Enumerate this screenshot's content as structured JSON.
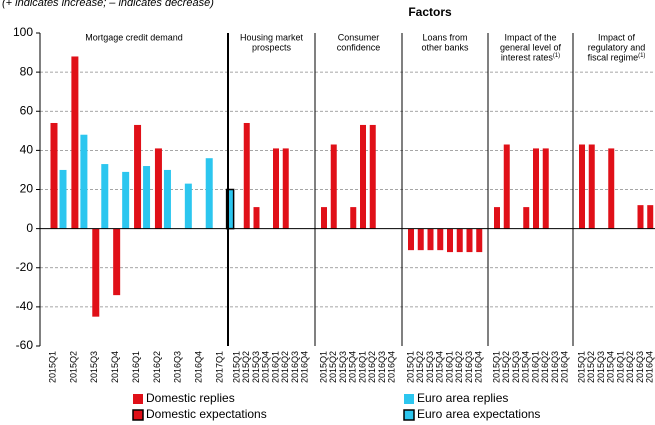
{
  "chart_data": {
    "type": "bar",
    "note": "(+ indicates increase; – indicates decrease)",
    "title": "Factors",
    "ylim": [
      -60,
      100
    ],
    "yticks": [
      -60,
      -40,
      -20,
      0,
      20,
      40,
      60,
      80,
      100
    ],
    "grid": true,
    "series": [
      {
        "name": "Domestic replies",
        "color": "#e01018",
        "border": false
      },
      {
        "name": "Euro area replies",
        "color": "#2cc6ef",
        "border": false
      },
      {
        "name": "Domestic expectations",
        "color": "#e01018",
        "border": true
      },
      {
        "name": "Euro area expectations",
        "color": "#2cc6ef",
        "border": true
      }
    ],
    "panels": [
      {
        "title": [
          "Mortgage credit demand"
        ],
        "note_ref": null,
        "categories": [
          "2015Q1",
          "2015Q2",
          "2015Q3",
          "2015Q4",
          "2016Q1",
          "2016Q2",
          "2016Q3",
          "2016Q4",
          "2017Q1"
        ],
        "series": [
          {
            "values": [
              54,
              88,
              -45,
              -34,
              53,
              41,
              0,
              0,
              null
            ]
          },
          {
            "values": [
              30,
              48,
              33,
              29,
              32,
              30,
              23,
              36,
              null
            ]
          },
          {
            "values": [
              null,
              null,
              null,
              null,
              null,
              null,
              null,
              null,
              0
            ]
          },
          {
            "values": [
              null,
              null,
              null,
              null,
              null,
              null,
              null,
              null,
              20
            ]
          }
        ]
      },
      {
        "title": [
          "Housing market",
          "prospects"
        ],
        "note_ref": null,
        "categories": [
          "2015Q1",
          "2015Q2",
          "2015Q3",
          "2015Q4",
          "2016Q1",
          "2016Q2",
          "2016Q3",
          "2016Q4"
        ],
        "series": [
          {
            "values": [
              0,
              54,
              11,
              0,
              41,
              41,
              0,
              0
            ]
          }
        ]
      },
      {
        "title": [
          "Consumer",
          "confidence"
        ],
        "note_ref": null,
        "categories": [
          "2015Q1",
          "2015Q2",
          "2015Q3",
          "2015Q4",
          "2016Q1",
          "2016Q2",
          "2016Q3",
          "2016Q4"
        ],
        "series": [
          {
            "values": [
              11,
              43,
              0,
              11,
              53,
              53,
              0,
              0
            ]
          }
        ]
      },
      {
        "title": [
          "Loans from",
          "other banks"
        ],
        "note_ref": null,
        "categories": [
          "2015Q1",
          "2015Q2",
          "2015Q3",
          "2015Q4",
          "2016Q1",
          "2016Q2",
          "2016Q3",
          "2016Q4"
        ],
        "series": [
          {
            "values": [
              -11,
              -11,
              -11,
              -11,
              -12,
              -12,
              -12,
              -12
            ]
          }
        ]
      },
      {
        "title": [
          "Impact of the",
          "general level of",
          "interest rates"
        ],
        "note_ref": "(1)",
        "categories": [
          "2015Q1",
          "2015Q2",
          "2015Q3",
          "2015Q4",
          "2016Q1",
          "2016Q2",
          "2016Q3",
          "2016Q4"
        ],
        "series": [
          {
            "values": [
              11,
              43,
              0,
              11,
              41,
              41,
              0,
              0
            ]
          }
        ]
      },
      {
        "title": [
          "Impact of",
          "regulatory and",
          "fiscal regime"
        ],
        "note_ref": "(1)",
        "categories": [
          "2015Q1",
          "2015Q2",
          "2015Q3",
          "2015Q4",
          "2016Q1",
          "2016Q2",
          "2016Q3",
          "2016Q4"
        ],
        "series": [
          {
            "values": [
              43,
              43,
              0,
              41,
              0,
              0,
              12,
              12
            ]
          }
        ]
      }
    ]
  }
}
